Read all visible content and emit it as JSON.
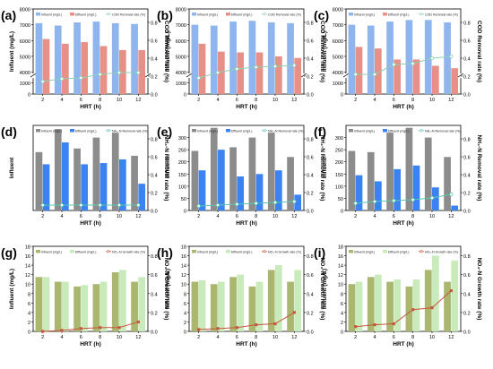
{
  "x_categories": [
    "2",
    "4",
    "6",
    "8",
    "10",
    "12"
  ],
  "chart_data": [
    {
      "panel_label": "(a)",
      "type": "bar",
      "xlabel": "HRT (h)",
      "ylabel": "Influent (mg/L)",
      "y2label": "COD Removal rate (%)",
      "ylim": [
        0,
        8000
      ],
      "broken_y_axis": true,
      "y_ticks_upper": [
        "4000",
        "5000",
        "6000",
        "7000",
        "8000"
      ],
      "y_ticks_lower": [
        "0",
        "1000"
      ],
      "y2_ticks": [
        "0.0",
        "0.2",
        "0.4",
        "0.6",
        "0.8"
      ],
      "y2lim": [
        0,
        0.95
      ],
      "categories": [
        "2",
        "4",
        "6",
        "8",
        "10",
        "12"
      ],
      "legend": [
        "Influent (mg/L)",
        "Effluent (mg/L)",
        "COD Removal rate (%)"
      ],
      "series": [
        {
          "name": "Influent (mg/L)",
          "kind": "bar",
          "color": "#8fb5ee",
          "values": [
            7100,
            6950,
            7150,
            7200,
            7100,
            7050
          ]
        },
        {
          "name": "Effluent (mg/L)",
          "kind": "bar",
          "color": "#e79087",
          "values": [
            6100,
            5800,
            5900,
            5650,
            5400,
            5400
          ]
        },
        {
          "name": "COD Removal rate (%)",
          "kind": "line",
          "axis": "right",
          "color": "#8ed0b6",
          "marker": "circle",
          "values": [
            0.14,
            0.17,
            0.18,
            0.22,
            0.24,
            0.24
          ]
        }
      ]
    },
    {
      "panel_label": "(b)",
      "type": "bar",
      "xlabel": "HRT (h)",
      "ylabel": "Influent (mg/L)",
      "y2label": "COD Removal rate (%)",
      "ylim": [
        0,
        8000
      ],
      "broken_y_axis": true,
      "y_ticks_upper": [
        "4000",
        "5000",
        "6000",
        "7000",
        "8000"
      ],
      "y_ticks_lower": [
        "0",
        "1000"
      ],
      "y2_ticks": [
        "0.0",
        "0.2",
        "0.4",
        "0.6",
        "0.8"
      ],
      "y2lim": [
        0,
        0.95
      ],
      "categories": [
        "2",
        "4",
        "6",
        "8",
        "10",
        "12"
      ],
      "legend": [
        "Influent (mg/L)",
        "Effluent (mg/L)",
        "COD Removal rate (%)"
      ],
      "series": [
        {
          "name": "Influent (mg/L)",
          "kind": "bar",
          "color": "#8fb5ee",
          "values": [
            7000,
            6950,
            7200,
            7250,
            7150,
            7100
          ]
        },
        {
          "name": "Effluent (mg/L)",
          "kind": "bar",
          "color": "#e79087",
          "values": [
            5800,
            5300,
            5250,
            5250,
            5000,
            4900
          ]
        },
        {
          "name": "COD Removal rate (%)",
          "kind": "line",
          "axis": "right",
          "color": "#8ed0b6",
          "marker": "circle",
          "values": [
            0.18,
            0.24,
            0.28,
            0.3,
            0.31,
            0.32
          ]
        }
      ]
    },
    {
      "panel_label": "(c)",
      "type": "bar",
      "xlabel": "HRT (h)",
      "ylabel": "Influent (mg/L)",
      "y2label": "COD Removal rate (%)",
      "ylim": [
        0,
        8000
      ],
      "broken_y_axis": true,
      "y_ticks_upper": [
        "4000",
        "5000",
        "6000",
        "7000",
        "8000"
      ],
      "y_ticks_lower": [
        "0",
        "1000"
      ],
      "y2_ticks": [
        "0.0",
        "0.2",
        "0.4",
        "0.6",
        "0.8"
      ],
      "y2lim": [
        0,
        0.95
      ],
      "categories": [
        "2",
        "4",
        "6",
        "8",
        "10",
        "12"
      ],
      "legend": [
        "Influent (mg/L)",
        "Effluent (mg/L)",
        "COD Removal rate (%)"
      ],
      "series": [
        {
          "name": "Influent (mg/L)",
          "kind": "bar",
          "color": "#8fb5ee",
          "values": [
            7000,
            6950,
            7200,
            7300,
            7300,
            7150
          ]
        },
        {
          "name": "Effluent (mg/L)",
          "kind": "bar",
          "color": "#e79087",
          "values": [
            5600,
            5500,
            4800,
            4800,
            4400,
            4250
          ]
        },
        {
          "name": "COD Removal rate (%)",
          "kind": "line",
          "axis": "right",
          "color": "#8ed0b6",
          "marker": "circle",
          "values": [
            0.22,
            0.22,
            0.33,
            0.34,
            0.4,
            0.42
          ]
        }
      ]
    },
    {
      "panel_label": "(d)",
      "type": "bar",
      "xlabel": "HRT (h)",
      "ylabel": "Influent",
      "y2label": "NH₄-N Removal rate (%)",
      "ylim": [
        0,
        350
      ],
      "y_ticks": [],
      "y2_ticks": [
        "0.0",
        "0.2",
        "0.4",
        "0.6",
        "0.8"
      ],
      "y2lim": [
        0,
        0.95
      ],
      "categories": [
        "2",
        "4",
        "6",
        "8",
        "10",
        "12"
      ],
      "legend": [
        "Influent (mg/L)",
        "Effluent (mg/L)",
        "NH₄-N Removal rate (%)"
      ],
      "series": [
        {
          "name": "Influent (mg/L)",
          "kind": "bar",
          "color": "#8c8c8c",
          "values": [
            240,
            335,
            255,
            300,
            320,
            225
          ]
        },
        {
          "name": "Effluent (mg/L)",
          "kind": "bar",
          "color": "#3b82f2",
          "values": [
            190,
            280,
            190,
            195,
            210,
            110
          ]
        },
        {
          "name": "NH₄-N Removal rate (%)",
          "kind": "line",
          "axis": "right",
          "color": "#59c8b3",
          "marker": "circle",
          "values": [
            0.06,
            0.06,
            0.06,
            0.06,
            0.06,
            0.06
          ]
        }
      ]
    },
    {
      "panel_label": "(e)",
      "type": "bar",
      "xlabel": "HRT (h)",
      "ylabel": "Influent",
      "y2label": "NH₄-N Removal rate (%)",
      "ylim": [
        0,
        350
      ],
      "y_ticks": [
        "0",
        "50",
        "100",
        "150",
        "200",
        "250",
        "300"
      ],
      "y2_ticks": [
        "0.0",
        "0.2",
        "0.4",
        "0.6",
        "0.8"
      ],
      "y2lim": [
        0,
        0.95
      ],
      "categories": [
        "2",
        "4",
        "6",
        "8",
        "10",
        "12"
      ],
      "legend": [
        "Influent (mg/L)",
        "Effluent (mg/L)",
        "NH₄-N Removal rate (%)"
      ],
      "series": [
        {
          "name": "Influent (mg/L)",
          "kind": "bar",
          "color": "#8c8c8c",
          "values": [
            245,
            340,
            260,
            300,
            320,
            220
          ]
        },
        {
          "name": "Effluent (mg/L)",
          "kind": "bar",
          "color": "#3b82f2",
          "values": [
            165,
            250,
            140,
            150,
            165,
            65
          ]
        },
        {
          "name": "NH₄-N Removal rate (%)",
          "kind": "line",
          "axis": "right",
          "color": "#59c8b3",
          "marker": "circle",
          "values": [
            0.05,
            0.06,
            0.07,
            0.08,
            0.09,
            0.1
          ]
        }
      ]
    },
    {
      "panel_label": "(f)",
      "type": "bar",
      "xlabel": "HRT (h)",
      "ylabel": "Influent",
      "y2label": "NH₄-N Removal rate (%)",
      "ylim": [
        0,
        350
      ],
      "y_ticks": [
        "0",
        "50",
        "100",
        "150",
        "200",
        "250",
        "300"
      ],
      "y2_ticks": [
        "0.0",
        "0.2",
        "0.4",
        "0.6",
        "0.8"
      ],
      "y2lim": [
        0,
        0.95
      ],
      "categories": [
        "2",
        "4",
        "6",
        "8",
        "10",
        "12"
      ],
      "legend": [
        "Influent (mg/L)",
        "Effluent (mg/L)",
        "NH₄-N Removal rate (%)"
      ],
      "series": [
        {
          "name": "Influent (mg/L)",
          "kind": "bar",
          "color": "#8c8c8c",
          "values": [
            245,
            240,
            320,
            340,
            300,
            220
          ]
        },
        {
          "name": "Effluent (mg/L)",
          "kind": "bar",
          "color": "#3b82f2",
          "values": [
            145,
            120,
            170,
            185,
            95,
            20
          ]
        },
        {
          "name": "NH₄-N Removal rate (%)",
          "kind": "line",
          "axis": "right",
          "color": "#59c8b3",
          "marker": "circle",
          "values": [
            0.08,
            0.1,
            0.11,
            0.12,
            0.14,
            0.18
          ]
        }
      ]
    },
    {
      "panel_label": "(g)",
      "type": "bar",
      "xlabel": "HRT (h)",
      "ylabel": "Influent (mg/L)",
      "y2label": "NO₃-N Growth rate (%)",
      "ylim": [
        0,
        18
      ],
      "y_ticks": [
        "0",
        "2",
        "4",
        "6",
        "8",
        "10",
        "12",
        "14",
        "16",
        "18"
      ],
      "y2_ticks": [
        "0.0",
        "0.2",
        "0.4",
        "0.6",
        "0.8"
      ],
      "y2lim": [
        0,
        0.9
      ],
      "categories": [
        "2",
        "4",
        "6",
        "8",
        "10",
        "12"
      ],
      "legend": [
        "Influent (mg/L)",
        "Effluent (mg/L)",
        "NO₃-N Growth rate (%)"
      ],
      "series": [
        {
          "name": "Influent (mg/L)",
          "kind": "bar",
          "color": "#a9b76f",
          "values": [
            11.5,
            10.5,
            9.5,
            10.0,
            12.5,
            10.5
          ]
        },
        {
          "name": "Effluent (mg/L)",
          "kind": "bar",
          "color": "#c9eaba",
          "values": [
            11.5,
            10.5,
            9.8,
            10.5,
            13.0,
            11.5
          ]
        },
        {
          "name": "NO₃-N Growth rate (%)",
          "kind": "line",
          "axis": "right",
          "color": "#c8553d",
          "marker": "square",
          "values": [
            0.0,
            0.01,
            0.03,
            0.04,
            0.04,
            0.1
          ]
        }
      ]
    },
    {
      "panel_label": "(h)",
      "type": "bar",
      "xlabel": "HRT (h)",
      "ylabel": "Influent (mg/L)",
      "y2label": "NO₃-N Growth rate (%)",
      "ylim": [
        0,
        18
      ],
      "y_ticks": [
        "0",
        "2",
        "4",
        "6",
        "8",
        "10",
        "12",
        "14",
        "16",
        "18"
      ],
      "y2_ticks": [
        "0.0",
        "0.2",
        "0.4",
        "0.6",
        "0.8"
      ],
      "y2lim": [
        0,
        0.9
      ],
      "categories": [
        "2",
        "4",
        "6",
        "8",
        "10",
        "12"
      ],
      "legend": [
        "Influent (mg/L)",
        "Effluent (mg/L)",
        "NO₃-N Growth rate (%)"
      ],
      "series": [
        {
          "name": "Influent (mg/L)",
          "kind": "bar",
          "color": "#a9b76f",
          "values": [
            10.5,
            10.0,
            11.5,
            9.5,
            13.0,
            10.5
          ]
        },
        {
          "name": "Effluent (mg/L)",
          "kind": "bar",
          "color": "#c9eaba",
          "values": [
            10.8,
            10.5,
            12.0,
            10.5,
            14.0,
            13.0
          ]
        },
        {
          "name": "NO₃-N Growth rate (%)",
          "kind": "line",
          "axis": "right",
          "color": "#c8553d",
          "marker": "square",
          "values": [
            0.02,
            0.03,
            0.04,
            0.07,
            0.08,
            0.2
          ]
        }
      ]
    },
    {
      "panel_label": "(i)",
      "type": "bar",
      "xlabel": "HRT (h)",
      "ylabel": "Influent (mg/L)",
      "y2label": "NO₃-N Growth rate (%)",
      "ylim": [
        0,
        18
      ],
      "y_ticks": [
        "0",
        "2",
        "4",
        "6",
        "8",
        "10",
        "12",
        "14",
        "16",
        "18"
      ],
      "y2_ticks": [
        "0.0",
        "0.2",
        "0.4",
        "0.6",
        "0.8"
      ],
      "y2lim": [
        0,
        0.9
      ],
      "categories": [
        "2",
        "4",
        "6",
        "8",
        "10",
        "12"
      ],
      "legend": [
        "Influent (mg/L)",
        "Effluent (mg/L)",
        "NO₃-N Growth rate (%)"
      ],
      "series": [
        {
          "name": "Influent (mg/L)",
          "kind": "bar",
          "color": "#a9b76f",
          "values": [
            10.0,
            11.5,
            10.5,
            9.5,
            13.0,
            10.5
          ]
        },
        {
          "name": "Effluent (mg/L)",
          "kind": "bar",
          "color": "#c9eaba",
          "values": [
            10.5,
            12.0,
            11.0,
            11.0,
            16.0,
            15.0
          ]
        },
        {
          "name": "NO₃-N Growth rate (%)",
          "kind": "line",
          "axis": "right",
          "color": "#c8553d",
          "marker": "square",
          "values": [
            0.05,
            0.07,
            0.08,
            0.23,
            0.25,
            0.43
          ]
        }
      ]
    }
  ]
}
